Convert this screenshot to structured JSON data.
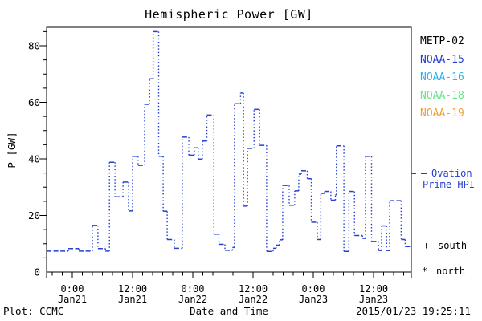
{
  "title": "Hemispheric Power [GW]",
  "chart_data": {
    "type": "step-line",
    "title": "Hemispheric Power [GW]",
    "xlabel": "Date and Time",
    "ylabel": "P [GW]",
    "x_unit": "hours since 2015-01-21 00:00 UT",
    "x_range_hours": [
      -5.12,
      67.52
    ],
    "ylim": [
      0,
      86.5
    ],
    "y_major_ticks": [
      0,
      20,
      40,
      60,
      80
    ],
    "y_minor_step": 5,
    "x_minor_step_hours": 2,
    "x_major_ticks": [
      {
        "t": 0,
        "time": "0:00",
        "date": "Jan21"
      },
      {
        "t": 12,
        "time": "12:00",
        "date": "Jan21"
      },
      {
        "t": 24,
        "time": "0:00",
        "date": "Jan22"
      },
      {
        "t": 36,
        "time": "12:00",
        "date": "Jan22"
      },
      {
        "t": 48,
        "time": "0:00",
        "date": "Jan23"
      },
      {
        "t": 60,
        "time": "12:00",
        "date": "Jan23"
      }
    ],
    "grid": "off",
    "line_color": "#2540d2",
    "line_style": "dashed horizontals, dotted vertical connectors",
    "series_name": "Ovation Prime HPI",
    "segments_t1_t2_gw": [
      [
        -5.1,
        -0.8,
        7.4
      ],
      [
        -0.8,
        1.3,
        8.3
      ],
      [
        1.3,
        4.0,
        7.4
      ],
      [
        4.0,
        5.1,
        16.5
      ],
      [
        5.1,
        6.6,
        8.3
      ],
      [
        6.6,
        7.4,
        7.4
      ],
      [
        7.4,
        8.5,
        38.8
      ],
      [
        8.5,
        10.1,
        26.6
      ],
      [
        10.1,
        11.2,
        31.8
      ],
      [
        11.2,
        12.0,
        21.6
      ],
      [
        12.0,
        13.1,
        40.9
      ],
      [
        13.1,
        14.4,
        37.7
      ],
      [
        14.4,
        15.4,
        59.3
      ],
      [
        15.4,
        16.1,
        68.3
      ],
      [
        16.1,
        17.2,
        85.0
      ],
      [
        17.2,
        18.1,
        40.9
      ],
      [
        18.1,
        18.9,
        21.5
      ],
      [
        18.9,
        20.3,
        11.5
      ],
      [
        20.3,
        21.9,
        8.4
      ],
      [
        21.9,
        23.2,
        47.7
      ],
      [
        23.2,
        24.3,
        41.3
      ],
      [
        24.3,
        25.1,
        43.9
      ],
      [
        25.1,
        25.9,
        39.9
      ],
      [
        25.9,
        26.8,
        46.3
      ],
      [
        26.8,
        28.2,
        55.5
      ],
      [
        28.2,
        29.2,
        13.4
      ],
      [
        29.2,
        30.4,
        9.8
      ],
      [
        30.4,
        31.9,
        7.7
      ],
      [
        31.9,
        32.3,
        8.7
      ],
      [
        32.3,
        33.5,
        59.5
      ],
      [
        33.5,
        34.1,
        63.3
      ],
      [
        34.1,
        34.9,
        23.3
      ],
      [
        34.9,
        36.2,
        43.7
      ],
      [
        36.2,
        37.3,
        57.5
      ],
      [
        37.3,
        38.7,
        44.8
      ],
      [
        38.7,
        40.0,
        7.3
      ],
      [
        40.0,
        40.6,
        8.4
      ],
      [
        40.6,
        41.3,
        9.5
      ],
      [
        41.3,
        41.9,
        11.4
      ],
      [
        41.9,
        43.2,
        30.6
      ],
      [
        43.2,
        44.3,
        23.6
      ],
      [
        44.3,
        45.1,
        28.7
      ],
      [
        45.1,
        45.6,
        34.6
      ],
      [
        45.6,
        46.8,
        35.8
      ],
      [
        46.8,
        47.6,
        33.0
      ],
      [
        47.6,
        48.8,
        17.6
      ],
      [
        48.8,
        49.5,
        11.5
      ],
      [
        49.5,
        50.2,
        27.8
      ],
      [
        50.2,
        51.5,
        28.5
      ],
      [
        51.5,
        52.4,
        25.4
      ],
      [
        52.4,
        52.6,
        27.3
      ],
      [
        52.6,
        54.1,
        44.6
      ],
      [
        54.1,
        55.1,
        7.3
      ],
      [
        55.1,
        56.2,
        28.5
      ],
      [
        56.2,
        57.8,
        12.9
      ],
      [
        57.8,
        58.4,
        11.9
      ],
      [
        58.4,
        59.6,
        40.9
      ],
      [
        59.6,
        61.0,
        10.8
      ],
      [
        61.0,
        61.6,
        7.6
      ],
      [
        61.6,
        62.6,
        16.3
      ],
      [
        62.6,
        63.2,
        7.6
      ],
      [
        63.2,
        65.5,
        25.2
      ],
      [
        65.5,
        66.3,
        11.5
      ],
      [
        66.3,
        67.5,
        9.0
      ]
    ]
  },
  "legend": {
    "satellites": [
      {
        "label": "METP-02",
        "color": "#000000"
      },
      {
        "label": "NOAA-15",
        "color": "#2540d2"
      },
      {
        "label": "NOAA-16",
        "color": "#2ab4f0"
      },
      {
        "label": "NOAA-18",
        "color": "#63e68c"
      },
      {
        "label": "NOAA-19",
        "color": "#f0a038"
      }
    ]
  },
  "annotations": {
    "ovation": {
      "line1": "Ovation",
      "line2": "Prime HPI",
      "color": "#2540d2"
    },
    "south": {
      "marker": "+",
      "label": "south"
    },
    "north": {
      "marker": "*",
      "label": "north"
    }
  },
  "footer": {
    "credit": "Plot: CCMC",
    "xlabel": "Date and Time",
    "timestamp": "2015/01/23 19:25:11"
  }
}
